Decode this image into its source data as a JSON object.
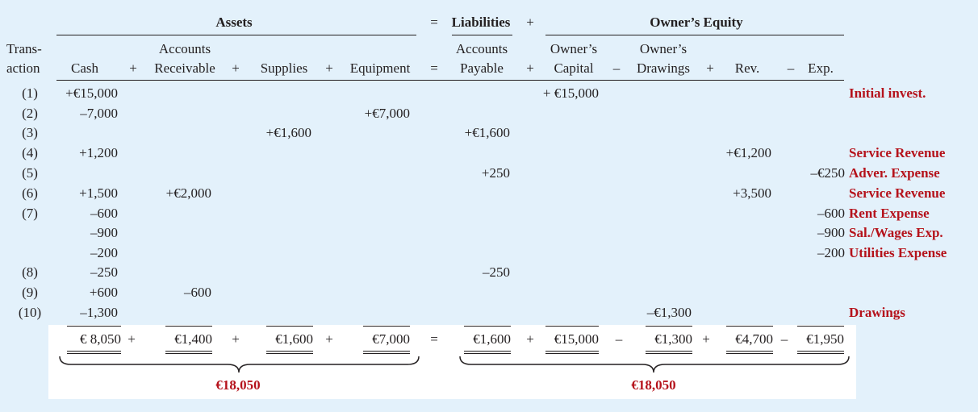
{
  "header": {
    "assets": "Assets",
    "eq_sign": "=",
    "liabilities": "Liabilities",
    "plus_sign": "+",
    "owners_equity": "Owner’s Equity"
  },
  "columns": {
    "transaction_l1": "Trans-",
    "transaction_l2": "action",
    "cash": "Cash",
    "ar_l1": "Accounts",
    "ar_l2": "Receivable",
    "supplies": "Supplies",
    "equipment": "Equipment",
    "ap_l1": "Accounts",
    "ap_l2": "Payable",
    "capital_l1": "Owner’s",
    "capital_l2": "Capital",
    "drawings_l1": "Owner’s",
    "drawings_l2": "Drawings",
    "rev": "Rev.",
    "exp": "Exp.",
    "op_plus": "+",
    "op_eq": "=",
    "op_minus": "–"
  },
  "rows": [
    {
      "tx": "(1)",
      "cash": "+€15,000",
      "ar": "",
      "sup": "",
      "equip": "",
      "ap": "",
      "cap": "+ €15,000",
      "draw": "",
      "rev": "",
      "exp": "",
      "note": "Initial invest."
    },
    {
      "tx": "(2)",
      "cash": "–7,000",
      "ar": "",
      "sup": "",
      "equip": "+€7,000",
      "ap": "",
      "cap": "",
      "draw": "",
      "rev": "",
      "exp": "",
      "note": ""
    },
    {
      "tx": "(3)",
      "cash": "",
      "ar": "",
      "sup": "+€1,600",
      "equip": "",
      "ap": "+€1,600",
      "cap": "",
      "draw": "",
      "rev": "",
      "exp": "",
      "note": ""
    },
    {
      "tx": "(4)",
      "cash": "+1,200",
      "ar": "",
      "sup": "",
      "equip": "",
      "ap": "",
      "cap": "",
      "draw": "",
      "rev": "+€1,200",
      "exp": "",
      "note": "Service Revenue"
    },
    {
      "tx": "(5)",
      "cash": "",
      "ar": "",
      "sup": "",
      "equip": "",
      "ap": "+250",
      "cap": "",
      "draw": "",
      "rev": "",
      "exp": "–€250",
      "note": "Adver. Expense"
    },
    {
      "tx": "(6)",
      "cash": "+1,500",
      "ar": "+€2,000",
      "sup": "",
      "equip": "",
      "ap": "",
      "cap": "",
      "draw": "",
      "rev": "+3,500",
      "exp": "",
      "note": "Service Revenue"
    },
    {
      "tx": "(7)",
      "cash": "–600",
      "ar": "",
      "sup": "",
      "equip": "",
      "ap": "",
      "cap": "",
      "draw": "",
      "rev": "",
      "exp": "–600",
      "note": "Rent Expense"
    },
    {
      "tx": "",
      "cash": "–900",
      "ar": "",
      "sup": "",
      "equip": "",
      "ap": "",
      "cap": "",
      "draw": "",
      "rev": "",
      "exp": "–900",
      "note": "Sal./Wages Exp."
    },
    {
      "tx": "",
      "cash": "–200",
      "ar": "",
      "sup": "",
      "equip": "",
      "ap": "",
      "cap": "",
      "draw": "",
      "rev": "",
      "exp": "–200",
      "note": "Utilities Expense"
    },
    {
      "tx": "(8)",
      "cash": "–250",
      "ar": "",
      "sup": "",
      "equip": "",
      "ap": "–250",
      "cap": "",
      "draw": "",
      "rev": "",
      "exp": "",
      "note": ""
    },
    {
      "tx": "(9)",
      "cash": "+600",
      "ar": "–600",
      "sup": "",
      "equip": "",
      "ap": "",
      "cap": "",
      "draw": "",
      "rev": "",
      "exp": "",
      "note": ""
    },
    {
      "tx": "(10)",
      "cash": "–1,300",
      "ar": "",
      "sup": "",
      "equip": "",
      "ap": "",
      "cap": "",
      "draw": "–€1,300",
      "rev": "",
      "exp": "",
      "note": "Drawings"
    }
  ],
  "totals": {
    "cash": "€ 8,050",
    "ar": "€1,400",
    "sup": "€1,600",
    "equip": "€7,000",
    "ap": "€1,600",
    "cap": "€15,000",
    "draw": "€1,300",
    "rev": "€4,700",
    "exp": "€1,950",
    "assets_total": "€18,050",
    "liab_equity_total": "€18,050"
  },
  "colors": {
    "background": "#e3f1fb",
    "highlight_red": "#b5121b",
    "text": "#231f20"
  }
}
